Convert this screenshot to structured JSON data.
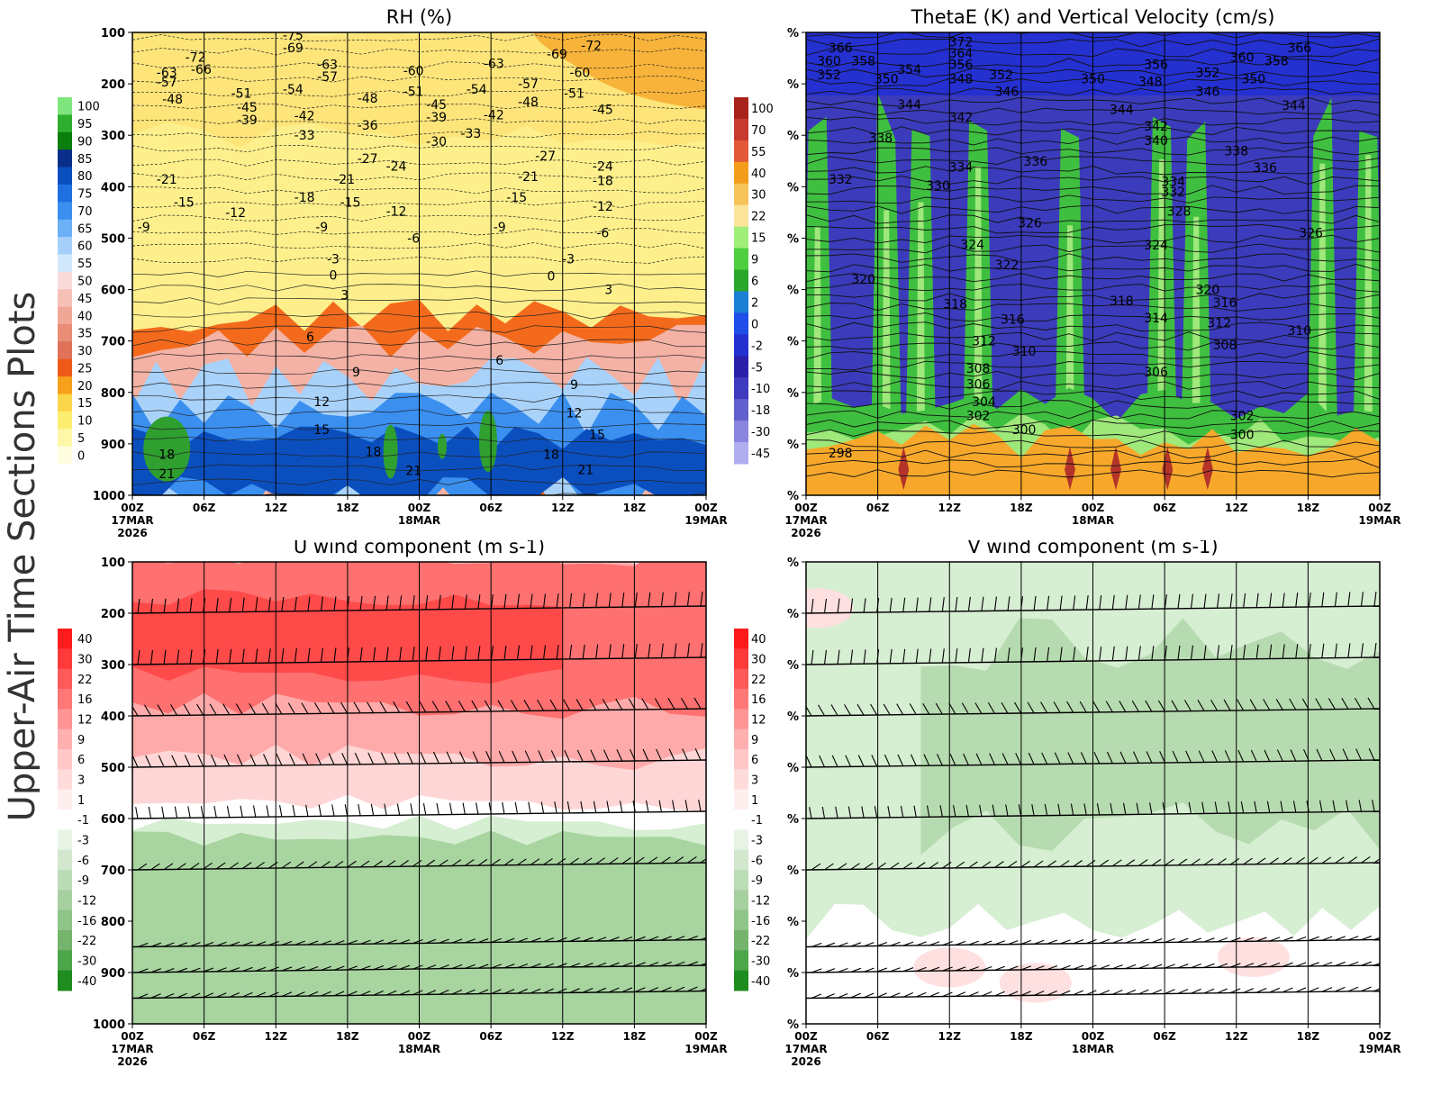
{
  "side_title": "Upper-Air Time Sections Plots",
  "x_axis": {
    "ticks": [
      "00Z",
      "06Z",
      "12Z",
      "18Z",
      "00Z",
      "06Z",
      "12Z",
      "18Z",
      "00Z"
    ],
    "date_labels": [
      {
        "tick_index": 0,
        "lines": [
          "17MAR",
          "2026"
        ]
      },
      {
        "tick_index": 4,
        "lines": [
          "18MAR"
        ]
      },
      {
        "tick_index": 8,
        "lines": [
          "19MAR"
        ]
      }
    ]
  },
  "chart_data": [
    {
      "id": "rh",
      "type": "heatmap",
      "title": "RH (%)",
      "y_ticks": [
        "100",
        "200",
        "300",
        "400",
        "500",
        "600",
        "700",
        "800",
        "900",
        "1000"
      ],
      "ylim": [
        100,
        1000
      ],
      "colorbar": {
        "labels": [
          "100",
          "95",
          "90",
          "85",
          "80",
          "75",
          "70",
          "65",
          "60",
          "55",
          "50",
          "45",
          "40",
          "35",
          "30",
          "25",
          "20",
          "15",
          "10",
          "5",
          "0"
        ],
        "colors": [
          "#7fe57f",
          "#2faf2f",
          "#0b7f0b",
          "#0a2d8a",
          "#0b4fbf",
          "#1f6fe0",
          "#3a8fef",
          "#6cb0f5",
          "#a6d0fa",
          "#d2e8fc",
          "#fbdada",
          "#f7c0b7",
          "#f1a796",
          "#e98d76",
          "#e0725a",
          "#f05a18",
          "#f7a01c",
          "#fbd54a",
          "#fdee72",
          "#fdf8a8",
          "#fffde0"
        ]
      },
      "fill_zones": [
        {
          "name": "upper-orange",
          "color": "#f8b43a"
        },
        {
          "name": "upper-yellow",
          "color": "#fde57a"
        },
        {
          "name": "mid-yellow",
          "color": "#fdf08c"
        },
        {
          "name": "inversion-orange",
          "color": "#f46a1c"
        },
        {
          "name": "pink-layer",
          "color": "#f3b2a4"
        },
        {
          "name": "light-blue",
          "color": "#a9d2fa"
        },
        {
          "name": "blue",
          "color": "#3a8fef"
        },
        {
          "name": "dark-blue",
          "color": "#0b4fbf"
        },
        {
          "name": "green-core",
          "color": "#2f9f2f"
        }
      ],
      "temperature_labels": [
        {
          "value": "-72",
          "t": 0.11,
          "p": 148
        },
        {
          "value": "-66",
          "t": 0.12,
          "p": 172
        },
        {
          "value": "-63",
          "t": 0.06,
          "p": 178
        },
        {
          "value": "-57",
          "t": 0.06,
          "p": 196
        },
        {
          "value": "-48",
          "t": 0.07,
          "p": 230
        },
        {
          "value": "-51",
          "t": 0.19,
          "p": 218
        },
        {
          "value": "-45",
          "t": 0.2,
          "p": 245
        },
        {
          "value": "-39",
          "t": 0.2,
          "p": 270
        },
        {
          "value": "-75",
          "t": 0.28,
          "p": 105
        },
        {
          "value": "-69",
          "t": 0.28,
          "p": 130
        },
        {
          "value": "-54",
          "t": 0.28,
          "p": 210
        },
        {
          "value": "-42",
          "t": 0.3,
          "p": 262
        },
        {
          "value": "-33",
          "t": 0.3,
          "p": 300
        },
        {
          "value": "-63",
          "t": 0.34,
          "p": 162
        },
        {
          "value": "-57",
          "t": 0.34,
          "p": 186
        },
        {
          "value": "-48",
          "t": 0.41,
          "p": 228
        },
        {
          "value": "-36",
          "t": 0.41,
          "p": 280
        },
        {
          "value": "-27",
          "t": 0.41,
          "p": 345
        },
        {
          "value": "-60",
          "t": 0.49,
          "p": 174
        },
        {
          "value": "-51",
          "t": 0.49,
          "p": 215
        },
        {
          "value": "-45",
          "t": 0.53,
          "p": 240
        },
        {
          "value": "-39",
          "t": 0.53,
          "p": 265
        },
        {
          "value": "-30",
          "t": 0.53,
          "p": 312
        },
        {
          "value": "-24",
          "t": 0.46,
          "p": 360
        },
        {
          "value": "-54",
          "t": 0.6,
          "p": 210
        },
        {
          "value": "-33",
          "t": 0.59,
          "p": 296
        },
        {
          "value": "-63",
          "t": 0.63,
          "p": 160
        },
        {
          "value": "-42",
          "t": 0.63,
          "p": 260
        },
        {
          "value": "-57",
          "t": 0.69,
          "p": 200
        },
        {
          "value": "-48",
          "t": 0.69,
          "p": 235
        },
        {
          "value": "-21",
          "t": 0.69,
          "p": 380
        },
        {
          "value": "-27",
          "t": 0.72,
          "p": 340
        },
        {
          "value": "-15",
          "t": 0.67,
          "p": 420
        },
        {
          "value": "-69",
          "t": 0.74,
          "p": 142
        },
        {
          "value": "-60",
          "t": 0.78,
          "p": 178
        },
        {
          "value": "-51",
          "t": 0.77,
          "p": 218
        },
        {
          "value": "-72",
          "t": 0.8,
          "p": 125
        },
        {
          "value": "-45",
          "t": 0.82,
          "p": 250
        },
        {
          "value": "-24",
          "t": 0.82,
          "p": 360
        },
        {
          "value": "-18",
          "t": 0.82,
          "p": 388
        },
        {
          "value": "-12",
          "t": 0.82,
          "p": 438
        },
        {
          "value": "-6",
          "t": 0.82,
          "p": 490
        },
        {
          "value": "-21",
          "t": 0.06,
          "p": 385
        },
        {
          "value": "-15",
          "t": 0.09,
          "p": 430
        },
        {
          "value": "-9",
          "t": 0.02,
          "p": 478
        },
        {
          "value": "-12",
          "t": 0.18,
          "p": 450
        },
        {
          "value": "-18",
          "t": 0.3,
          "p": 420
        },
        {
          "value": "-21",
          "t": 0.37,
          "p": 385
        },
        {
          "value": "-15",
          "t": 0.38,
          "p": 430
        },
        {
          "value": "-9",
          "t": 0.33,
          "p": 478
        },
        {
          "value": "-3",
          "t": 0.35,
          "p": 540
        },
        {
          "value": "0",
          "t": 0.35,
          "p": 572
        },
        {
          "value": "3",
          "t": 0.37,
          "p": 610
        },
        {
          "value": "-12",
          "t": 0.46,
          "p": 448
        },
        {
          "value": "-6",
          "t": 0.49,
          "p": 500
        },
        {
          "value": "-9",
          "t": 0.64,
          "p": 478
        },
        {
          "value": "-3",
          "t": 0.76,
          "p": 540
        },
        {
          "value": "0",
          "t": 0.73,
          "p": 574
        },
        {
          "value": "3",
          "t": 0.83,
          "p": 600
        },
        {
          "value": "6",
          "t": 0.31,
          "p": 692
        },
        {
          "value": "9",
          "t": 0.39,
          "p": 760
        },
        {
          "value": "6",
          "t": 0.64,
          "p": 737
        },
        {
          "value": "9",
          "t": 0.77,
          "p": 785
        },
        {
          "value": "12",
          "t": 0.33,
          "p": 818
        },
        {
          "value": "12",
          "t": 0.77,
          "p": 840
        },
        {
          "value": "15",
          "t": 0.33,
          "p": 872
        },
        {
          "value": "15",
          "t": 0.81,
          "p": 882
        },
        {
          "value": "18",
          "t": 0.06,
          "p": 920
        },
        {
          "value": "21",
          "t": 0.06,
          "p": 958
        },
        {
          "value": "18",
          "t": 0.42,
          "p": 915
        },
        {
          "value": "21",
          "t": 0.49,
          "p": 952
        },
        {
          "value": "18",
          "t": 0.73,
          "p": 920
        },
        {
          "value": "21",
          "t": 0.79,
          "p": 950
        }
      ]
    },
    {
      "id": "thetae",
      "type": "heatmap",
      "title": "ThetaE (K) and Vertical Velocity (cm/s)",
      "y_ticks": [
        "%",
        "%",
        "%",
        "%",
        "%",
        "%",
        "%",
        "%",
        "%",
        "%"
      ],
      "colorbar": {
        "labels": [
          "100",
          "70",
          "55",
          "40",
          "30",
          "22",
          "15",
          "9",
          "6",
          "2",
          "0",
          "-2",
          "-5",
          "-10",
          "-18",
          "-30",
          "-45"
        ],
        "colors": [
          "#a8221c",
          "#c83a30",
          "#e25a38",
          "#f49d1c",
          "#f7c45a",
          "#fbe59a",
          "#a0ef7a",
          "#4fcf3f",
          "#2aa72a",
          "#1b7fd6",
          "#1f4fe8",
          "#2430d0",
          "#2a1faa",
          "#3f3bbf",
          "#6361cf",
          "#8a86e0",
          "#b1aef0"
        ]
      },
      "fill_zones": [
        {
          "name": "blue-upper",
          "color": "#2430d0"
        },
        {
          "name": "indigo",
          "color": "#3b3bbb"
        },
        {
          "name": "green",
          "color": "#3fbf3f"
        },
        {
          "name": "light-green",
          "color": "#9fe87a"
        },
        {
          "name": "orange-low",
          "color": "#f7a82a"
        },
        {
          "name": "dark-red-cells",
          "color": "#b4342a"
        }
      ],
      "thetae_labels": [
        {
          "value": "372",
          "t": 0.27,
          "p": 118
        },
        {
          "value": "366",
          "t": 0.06,
          "p": 130
        },
        {
          "value": "364",
          "t": 0.27,
          "p": 140
        },
        {
          "value": "360",
          "t": 0.04,
          "p": 155
        },
        {
          "value": "358",
          "t": 0.1,
          "p": 155
        },
        {
          "value": "356",
          "t": 0.27,
          "p": 162
        },
        {
          "value": "354",
          "t": 0.18,
          "p": 172
        },
        {
          "value": "352",
          "t": 0.04,
          "p": 182
        },
        {
          "value": "350",
          "t": 0.14,
          "p": 190
        },
        {
          "value": "348",
          "t": 0.27,
          "p": 190
        },
        {
          "value": "352",
          "t": 0.34,
          "p": 182
        },
        {
          "value": "346",
          "t": 0.35,
          "p": 215
        },
        {
          "value": "344",
          "t": 0.18,
          "p": 240
        },
        {
          "value": "342",
          "t": 0.27,
          "p": 265
        },
        {
          "value": "338",
          "t": 0.13,
          "p": 305
        },
        {
          "value": "336",
          "t": 0.4,
          "p": 350
        },
        {
          "value": "334",
          "t": 0.27,
          "p": 362
        },
        {
          "value": "332",
          "t": 0.06,
          "p": 385
        },
        {
          "value": "330",
          "t": 0.23,
          "p": 398
        },
        {
          "value": "326",
          "t": 0.39,
          "p": 470
        },
        {
          "value": "324",
          "t": 0.29,
          "p": 512
        },
        {
          "value": "322",
          "t": 0.35,
          "p": 552
        },
        {
          "value": "320",
          "t": 0.1,
          "p": 580
        },
        {
          "value": "318",
          "t": 0.26,
          "p": 628
        },
        {
          "value": "316",
          "t": 0.36,
          "p": 658
        },
        {
          "value": "312",
          "t": 0.31,
          "p": 700
        },
        {
          "value": "310",
          "t": 0.38,
          "p": 720
        },
        {
          "value": "308",
          "t": 0.3,
          "p": 753
        },
        {
          "value": "306",
          "t": 0.3,
          "p": 784
        },
        {
          "value": "304",
          "t": 0.31,
          "p": 818
        },
        {
          "value": "302",
          "t": 0.3,
          "p": 845
        },
        {
          "value": "300",
          "t": 0.38,
          "p": 872
        },
        {
          "value": "298",
          "t": 0.06,
          "p": 918
        },
        {
          "value": "350",
          "t": 0.5,
          "p": 190
        },
        {
          "value": "344",
          "t": 0.55,
          "p": 250
        },
        {
          "value": "348",
          "t": 0.6,
          "p": 195
        },
        {
          "value": "342",
          "t": 0.61,
          "p": 282
        },
        {
          "value": "340",
          "t": 0.61,
          "p": 310
        },
        {
          "value": "356",
          "t": 0.61,
          "p": 162
        },
        {
          "value": "366",
          "t": 0.86,
          "p": 130
        },
        {
          "value": "360",
          "t": 0.76,
          "p": 148
        },
        {
          "value": "358",
          "t": 0.82,
          "p": 155
        },
        {
          "value": "352",
          "t": 0.7,
          "p": 178
        },
        {
          "value": "350",
          "t": 0.78,
          "p": 190
        },
        {
          "value": "346",
          "t": 0.7,
          "p": 215
        },
        {
          "value": "344",
          "t": 0.85,
          "p": 242
        },
        {
          "value": "338",
          "t": 0.75,
          "p": 330
        },
        {
          "value": "336",
          "t": 0.8,
          "p": 363
        },
        {
          "value": "334",
          "t": 0.64,
          "p": 390
        },
        {
          "value": "332",
          "t": 0.64,
          "p": 410
        },
        {
          "value": "328",
          "t": 0.65,
          "p": 448
        },
        {
          "value": "324",
          "t": 0.61,
          "p": 513
        },
        {
          "value": "326",
          "t": 0.88,
          "p": 490
        },
        {
          "value": "320",
          "t": 0.7,
          "p": 600
        },
        {
          "value": "318",
          "t": 0.55,
          "p": 622
        },
        {
          "value": "316",
          "t": 0.73,
          "p": 625
        },
        {
          "value": "314",
          "t": 0.61,
          "p": 655
        },
        {
          "value": "312",
          "t": 0.72,
          "p": 665
        },
        {
          "value": "310",
          "t": 0.86,
          "p": 680
        },
        {
          "value": "308",
          "t": 0.73,
          "p": 708
        },
        {
          "value": "306",
          "t": 0.61,
          "p": 760
        },
        {
          "value": "302",
          "t": 0.76,
          "p": 845
        },
        {
          "value": "300",
          "t": 0.76,
          "p": 882
        }
      ]
    },
    {
      "id": "uwind",
      "type": "heatmap",
      "title": "U wind component (m s-1)",
      "y_ticks": [
        "100",
        "200",
        "300",
        "400",
        "500",
        "600",
        "700",
        "800",
        "900",
        "1000"
      ],
      "colorbar": {
        "labels": [
          "40",
          "30",
          "22",
          "16",
          "12",
          "9",
          "6",
          "3",
          "1",
          "-1",
          "-3",
          "-6",
          "-9",
          "-12",
          "-16",
          "-22",
          "-30",
          "-40"
        ],
        "colors": [
          "#ff1b1b",
          "#ff3a3a",
          "#ff5a5a",
          "#ff7777",
          "#ff9494",
          "#ffb0b0",
          "#ffc7c7",
          "#ffdcdc",
          "#ffeeee",
          "#ffffff",
          "#e8f3e6",
          "#d2e7ce",
          "#bcdcb7",
          "#a6d09f",
          "#90c589",
          "#74b46c",
          "#4ea64a",
          "#1e8c1e"
        ]
      },
      "fill_zones": [
        {
          "name": "jet",
          "color": "#ff4a4a"
        },
        {
          "name": "red",
          "color": "#ff7070"
        },
        {
          "name": "pink",
          "color": "#ffaaaa"
        },
        {
          "name": "light-pink",
          "color": "#ffd6d6"
        },
        {
          "name": "white",
          "color": "#ffffff"
        },
        {
          "name": "light-green",
          "color": "#d6eed2"
        },
        {
          "name": "green",
          "color": "#a8d4a0"
        }
      ]
    },
    {
      "id": "vwind",
      "type": "heatmap",
      "title": "V wind component (m s-1)",
      "y_ticks": [
        "%",
        "%",
        "%",
        "%",
        "%",
        "%",
        "%",
        "%",
        "%",
        "%"
      ],
      "colorbar": {
        "labels": [
          "40",
          "30",
          "22",
          "16",
          "12",
          "9",
          "6",
          "3",
          "1",
          "-1",
          "-3",
          "-6",
          "-9",
          "-12",
          "-16",
          "-22",
          "-30",
          "-40"
        ],
        "colors": [
          "#ff1b1b",
          "#ff3a3a",
          "#ff5a5a",
          "#ff7777",
          "#ff9494",
          "#ffb0b0",
          "#ffc7c7",
          "#ffdcdc",
          "#ffeeee",
          "#ffffff",
          "#e8f3e6",
          "#d2e7ce",
          "#bcdcb7",
          "#a6d09f",
          "#90c589",
          "#74b46c",
          "#4ea64a",
          "#1e8c1e"
        ]
      },
      "fill_zones": [
        {
          "name": "light-green",
          "color": "#d6eed2"
        },
        {
          "name": "green",
          "color": "#b7dbb0"
        },
        {
          "name": "white",
          "color": "#ffffff"
        },
        {
          "name": "pale-pink",
          "color": "#ffe0e0"
        }
      ]
    }
  ]
}
